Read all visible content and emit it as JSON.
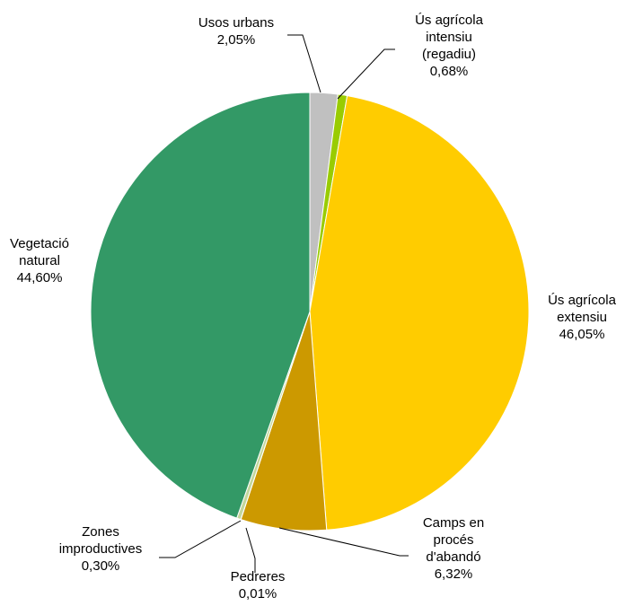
{
  "chart_data": {
    "type": "pie",
    "slices": [
      {
        "lines": [
          "Usos urbans",
          "2,05%"
        ],
        "value": 2.05,
        "color": "#c0c0c0"
      },
      {
        "lines": [
          "Ús agrícola",
          "intensiu",
          "(regadiu)",
          "0,68%"
        ],
        "value": 0.68,
        "color": "#99cc00"
      },
      {
        "lines": [
          "Ús agrícola",
          "extensiu",
          "46,05%"
        ],
        "value": 46.05,
        "color": "#ffcc00"
      },
      {
        "lines": [
          "Camps en",
          "procés",
          "d'abandó",
          "6,32%"
        ],
        "value": 6.32,
        "color": "#cc9900"
      },
      {
        "lines": [
          "Pedreres",
          "0,01%"
        ],
        "value": 0.01,
        "color": "#808080"
      },
      {
        "lines": [
          "Zones",
          "improductives",
          "0,30%"
        ],
        "value": 0.3,
        "color": "#c3d69b"
      },
      {
        "lines": [
          "Vegetació",
          "natural",
          "44,60%"
        ],
        "value": 44.6,
        "color": "#339966"
      }
    ]
  }
}
